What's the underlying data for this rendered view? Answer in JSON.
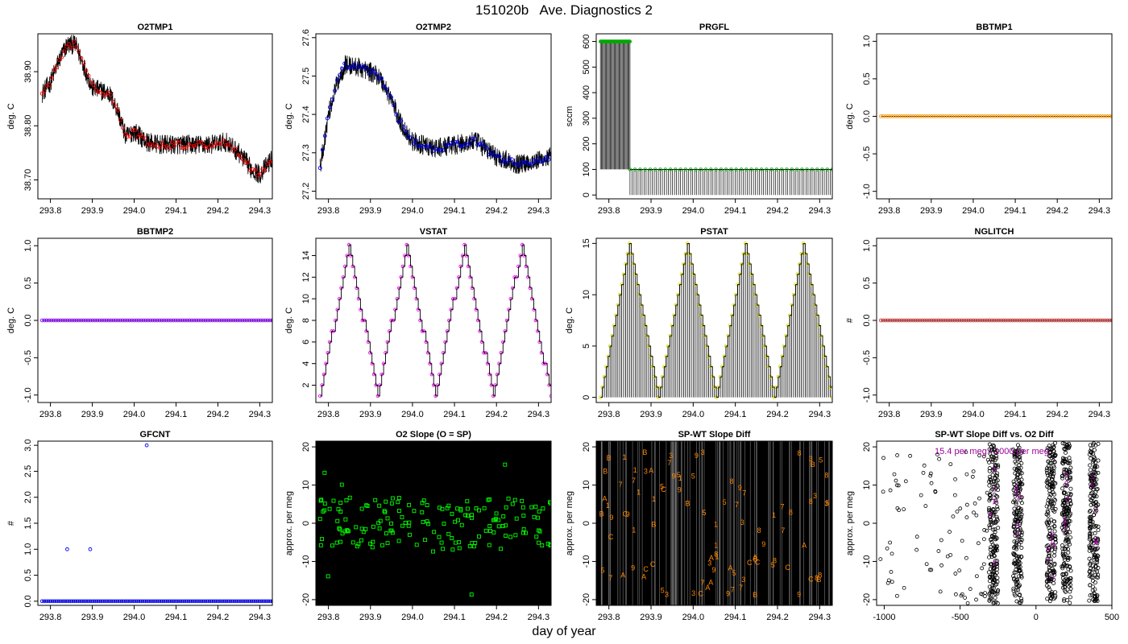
{
  "page": {
    "title": "151020b   Ave. Diagnostics 2",
    "xlabel": "day of year"
  },
  "chart_data": [
    {
      "id": "o2tmp1",
      "type": "line",
      "title": "O2TMP1",
      "ylabel": "deg. C",
      "xlim": [
        293.77,
        294.33
      ],
      "ylim": [
        38.665,
        38.97
      ],
      "xticks": [
        "293.8",
        "293.9",
        "294.0",
        "294.1",
        "294.2",
        "294.3"
      ],
      "yticks": [
        "38.70",
        "38.80",
        "38.90"
      ],
      "marker_color": "#ff0000",
      "marker": "circle",
      "series": [
        {
          "x_start": 293.78,
          "x_end": 294.33,
          "knots": [
            [
              293.78,
              38.86
            ],
            [
              293.8,
              38.88
            ],
            [
              293.82,
              38.92
            ],
            [
              293.84,
              38.95
            ],
            [
              293.86,
              38.95
            ],
            [
              293.88,
              38.91
            ],
            [
              293.9,
              38.87
            ],
            [
              293.94,
              38.86
            ],
            [
              293.96,
              38.83
            ],
            [
              293.98,
              38.78
            ],
            [
              294.0,
              38.79
            ],
            [
              294.03,
              38.77
            ],
            [
              294.06,
              38.765
            ],
            [
              294.12,
              38.765
            ],
            [
              294.18,
              38.765
            ],
            [
              294.22,
              38.77
            ],
            [
              294.25,
              38.75
            ],
            [
              294.28,
              38.72
            ],
            [
              294.3,
              38.71
            ],
            [
              294.33,
              38.74
            ]
          ]
        }
      ]
    },
    {
      "id": "o2tmp2",
      "type": "line",
      "title": "O2TMP2",
      "ylabel": "deg. C",
      "xlim": [
        293.77,
        294.33
      ],
      "ylim": [
        27.18,
        27.61
      ],
      "xticks": [
        "293.8",
        "293.9",
        "294.0",
        "294.1",
        "294.2",
        "294.3"
      ],
      "yticks": [
        "27.2",
        "27.3",
        "27.4",
        "27.5",
        "27.6"
      ],
      "marker_color": "#0000ff",
      "marker": "circle",
      "series": [
        {
          "x_start": 293.78,
          "x_end": 294.33,
          "knots": [
            [
              293.78,
              27.26
            ],
            [
              293.8,
              27.4
            ],
            [
              293.82,
              27.48
            ],
            [
              293.84,
              27.53
            ],
            [
              293.88,
              27.52
            ],
            [
              293.92,
              27.5
            ],
            [
              293.95,
              27.44
            ],
            [
              293.97,
              27.38
            ],
            [
              294.0,
              27.33
            ],
            [
              294.05,
              27.31
            ],
            [
              294.1,
              27.32
            ],
            [
              294.15,
              27.33
            ],
            [
              294.2,
              27.29
            ],
            [
              294.25,
              27.27
            ],
            [
              294.3,
              27.28
            ],
            [
              294.33,
              27.29
            ]
          ]
        }
      ]
    },
    {
      "id": "prgfl",
      "type": "line",
      "title": "PRGFL",
      "ylabel": "sccm",
      "xlim": [
        293.77,
        294.33
      ],
      "ylim": [
        -15,
        630
      ],
      "xticks": [
        "293.8",
        "293.9",
        "294.0",
        "294.1",
        "294.2",
        "294.3"
      ],
      "yticks": [
        "0",
        "100",
        "200",
        "300",
        "400",
        "500",
        "600"
      ],
      "marker_color": "#00aa00",
      "marker": "circle",
      "series": [
        {
          "x_start": 293.78,
          "x_end": 294.33,
          "segments": [
            {
              "x": [
                293.78,
                293.85
              ],
              "high": 600,
              "low": 100
            },
            {
              "x": [
                293.85,
                294.33
              ],
              "high": 100,
              "low": 0
            }
          ]
        }
      ]
    },
    {
      "id": "bbtmp1",
      "type": "line",
      "title": "BBTMP1",
      "ylabel": "deg. C",
      "xlim": [
        293.77,
        294.33
      ],
      "ylim": [
        -1.1,
        1.1
      ],
      "xticks": [
        "293.8",
        "293.9",
        "294.0",
        "294.1",
        "294.2",
        "294.3"
      ],
      "yticks": [
        "-1.0",
        "-0.5",
        "0.0",
        "0.5",
        "1.0"
      ],
      "marker_color": "#ff9900",
      "marker": "circle",
      "series": [
        {
          "x_start": 293.78,
          "x_end": 294.33,
          "constant": 0.0
        }
      ]
    },
    {
      "id": "bbtmp2",
      "type": "line",
      "title": "BBTMP2",
      "ylabel": "deg. C",
      "xlim": [
        293.77,
        294.33
      ],
      "ylim": [
        -1.1,
        1.1
      ],
      "xticks": [
        "293.8",
        "293.9",
        "294.0",
        "294.1",
        "294.2",
        "294.3"
      ],
      "yticks": [
        "-1.0",
        "-0.5",
        "0.0",
        "0.5",
        "1.0"
      ],
      "marker_color": "#8800ff",
      "marker": "circle",
      "series": [
        {
          "x_start": 293.78,
          "x_end": 294.33,
          "constant": 0.0
        }
      ]
    },
    {
      "id": "vstat",
      "type": "line",
      "title": "VSTAT",
      "ylabel": "deg. C",
      "xlim": [
        293.77,
        294.33
      ],
      "ylim": [
        0.4,
        15.6
      ],
      "xticks": [
        "293.8",
        "293.9",
        "294.0",
        "294.1",
        "294.2",
        "294.3"
      ],
      "yticks": [
        "2",
        "4",
        "6",
        "8",
        "10",
        "12",
        "14"
      ],
      "marker_color": "#ff00ff",
      "marker": "circle",
      "series": [
        {
          "x_start": 293.78,
          "x_end": 294.33,
          "triangle": {
            "min": 1,
            "max": 15,
            "period": 0.137,
            "peaks": [
              293.849,
              293.986,
              294.123,
              294.26
            ]
          }
        }
      ]
    },
    {
      "id": "pstat",
      "type": "line",
      "title": "PSTAT",
      "ylabel": "deg. C",
      "xlim": [
        293.77,
        294.33
      ],
      "ylim": [
        -0.5,
        15.5
      ],
      "xticks": [
        "293.8",
        "293.9",
        "294.0",
        "294.1",
        "294.2",
        "294.3"
      ],
      "yticks": [
        "0",
        "5",
        "10",
        "15"
      ],
      "marker_color": "#dddd00",
      "marker": "circle",
      "series": [
        {
          "x_start": 293.78,
          "x_end": 294.33,
          "triangle": {
            "min": 0,
            "max": 15,
            "period": 0.137,
            "peaks": [
              293.849,
              293.986,
              294.123,
              294.26
            ]
          }
        }
      ]
    },
    {
      "id": "nglitch",
      "type": "line",
      "title": "NGLITCH",
      "ylabel": "#",
      "xlim": [
        293.77,
        294.33
      ],
      "ylim": [
        -1.1,
        1.1
      ],
      "xticks": [
        "293.8",
        "293.9",
        "294.0",
        "294.1",
        "294.2",
        "294.3"
      ],
      "yticks": [
        "-1.0",
        "-0.5",
        "0.0",
        "0.5",
        "1.0"
      ],
      "marker_color": "#cc3333",
      "marker": "circle",
      "series": [
        {
          "x_start": 293.78,
          "x_end": 294.33,
          "constant": 0.0
        }
      ]
    },
    {
      "id": "gfcnt",
      "type": "scatter",
      "title": "GFCNT",
      "ylabel": "#",
      "xlim": [
        293.77,
        294.33
      ],
      "ylim": [
        -0.08,
        3.08
      ],
      "xticks": [
        "293.8",
        "293.9",
        "294.0",
        "294.1",
        "294.2",
        "294.3"
      ],
      "yticks": [
        "0.0",
        "0.5",
        "1.0",
        "1.5",
        "2.0",
        "2.5",
        "3.0"
      ],
      "marker_color": "#0000ff",
      "marker": "circle",
      "series": [
        {
          "x_start": 293.78,
          "x_end": 294.33,
          "constant": 0.0,
          "outliers": [
            [
              293.84,
              1.0
            ],
            [
              293.895,
              1.0
            ],
            [
              294.03,
              3.0
            ]
          ]
        }
      ]
    },
    {
      "id": "o2slope",
      "type": "scatter",
      "title": "O2 Slope (O = SP)",
      "ylabel": "approx. per meg",
      "xlim": [
        293.77,
        294.33
      ],
      "ylim": [
        -21.5,
        21.5
      ],
      "xticks": [
        "293.8",
        "293.9",
        "294.0",
        "294.1",
        "294.2",
        "294.3"
      ],
      "yticks": [
        "-20",
        "-10",
        "0",
        "10",
        "20"
      ],
      "marker_color": "#00ff00",
      "marker": "circle",
      "background": "#000000"
    },
    {
      "id": "spwt",
      "type": "scatter",
      "title": "SP-WT Slope Diff",
      "ylabel": "approx. per meg",
      "xlim": [
        293.77,
        294.33
      ],
      "ylim": [
        -21.5,
        21.5
      ],
      "xticks": [
        "293.8",
        "293.9",
        "294.0",
        "294.1",
        "294.2",
        "294.3"
      ],
      "yticks": [
        "-20",
        "-10",
        "0",
        "10",
        "20"
      ],
      "marker_color": "#ff8800",
      "marker": "glyph",
      "background": "#000000",
      "glyphs": [
        "1",
        "3",
        "5",
        "7",
        "9",
        "A",
        "B",
        "C",
        "8"
      ]
    },
    {
      "id": "spwt_o2",
      "type": "scatter",
      "title": "SP-WT Slope Diff vs. O2 Diff",
      "ylabel": "approx. per meg",
      "xlim": [
        -1050,
        500
      ],
      "ylim": [
        -21.5,
        21.5
      ],
      "xticks": [
        "-1000",
        "-500",
        "0",
        "500"
      ],
      "xtick_values": [
        -1000,
        -500,
        0,
        500
      ],
      "yticks": [
        "-20",
        "-10",
        "0",
        "10",
        "20"
      ],
      "marker_color": "#000000",
      "marker": "circle",
      "annotation": "15.4 per meg / 1000 per meg",
      "annotation_color": "#990099",
      "clusters": [
        -280,
        -120,
        100,
        200,
        380
      ]
    }
  ]
}
